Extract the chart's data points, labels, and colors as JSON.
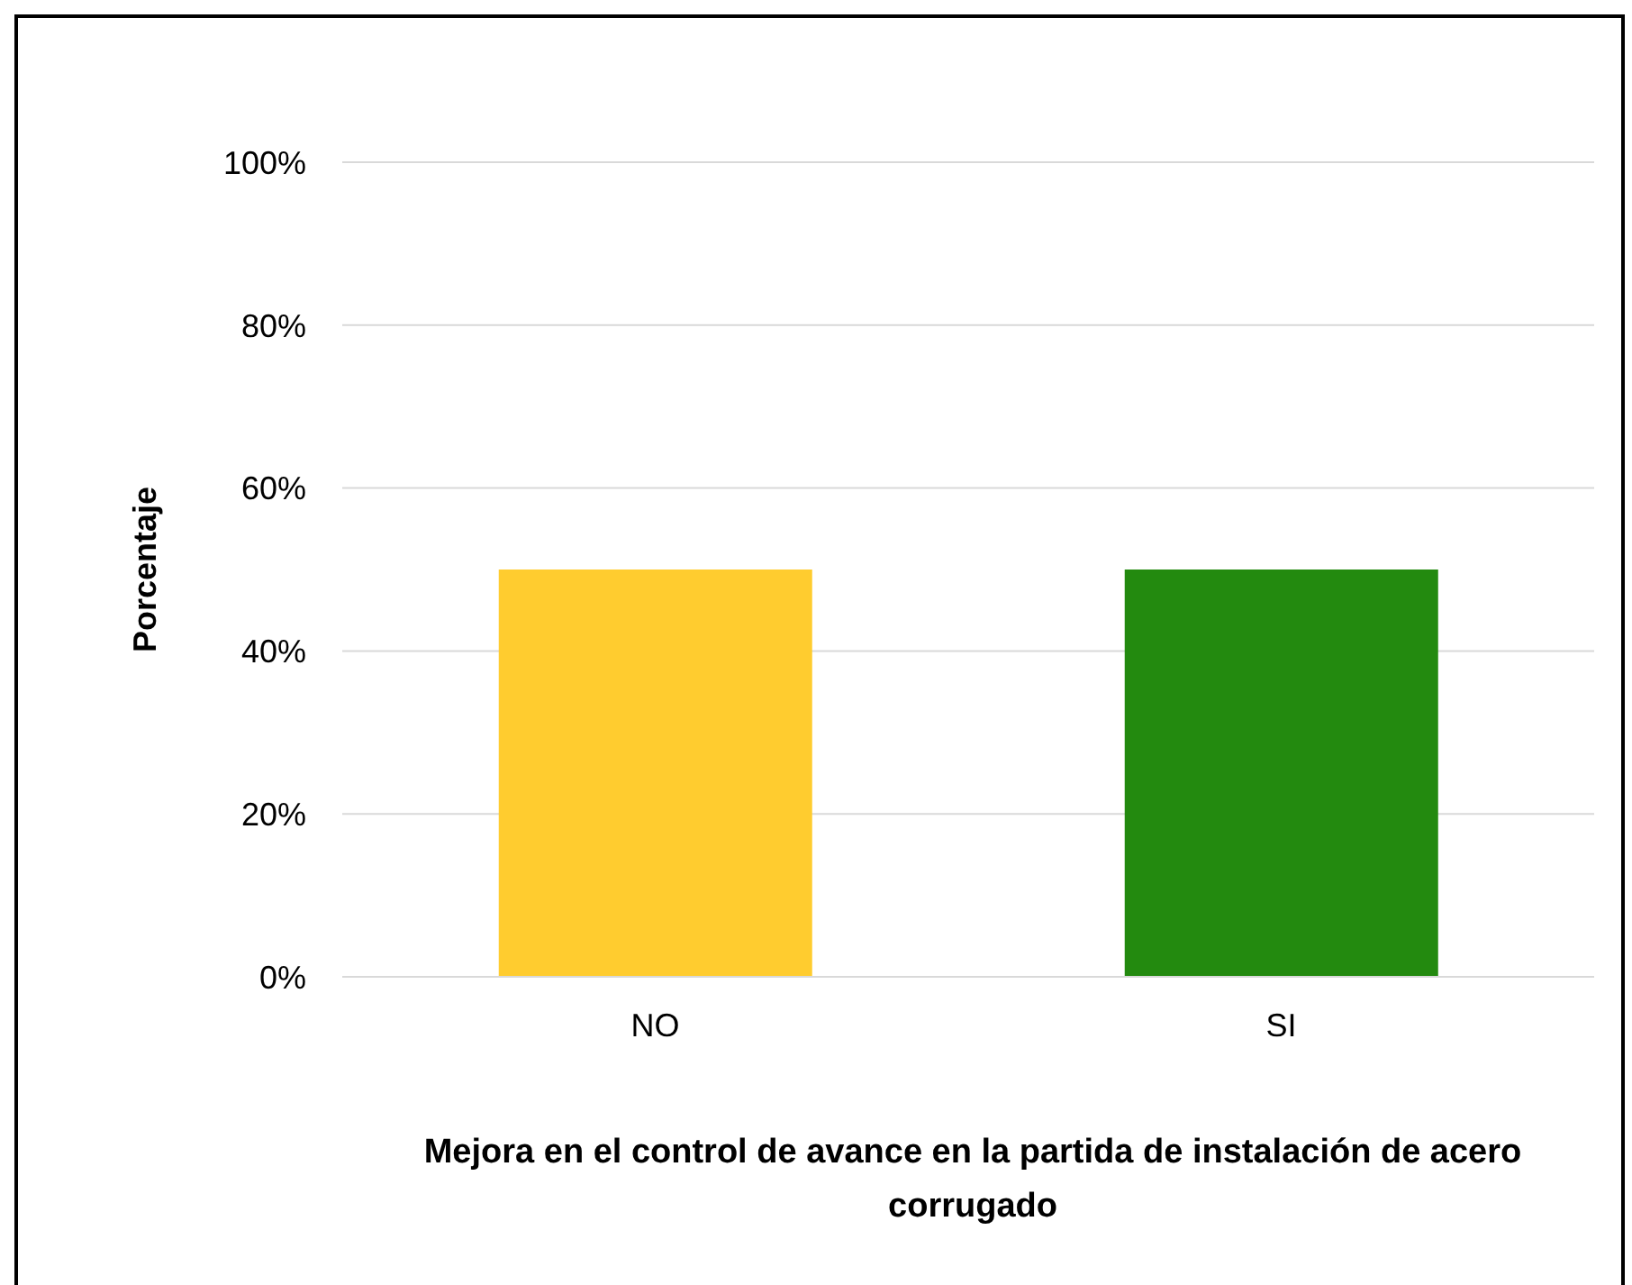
{
  "chart_data": {
    "type": "bar",
    "xlabel": "Mejora en el control de avance en la partida de instalación de acero corrugado",
    "ylabel": "Porcentaje",
    "categories": [
      "NO",
      "SI"
    ],
    "values": [
      50,
      50
    ],
    "colors": [
      "#ffcc2f",
      "#238a0f"
    ],
    "ylim": [
      0,
      100
    ],
    "yticks": [
      {
        "value": 0,
        "label": "0%"
      },
      {
        "value": 20,
        "label": "20%"
      },
      {
        "value": 40,
        "label": "40%"
      },
      {
        "value": 60,
        "label": "60%"
      },
      {
        "value": 80,
        "label": "80%"
      },
      {
        "value": 100,
        "label": "100%"
      }
    ],
    "grid": "y",
    "legend": false
  }
}
